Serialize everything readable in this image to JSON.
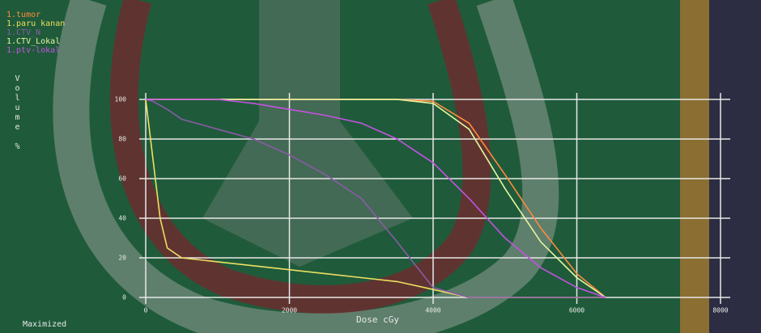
{
  "chart_data": {
    "type": "line",
    "x_label": "Dose cGy",
    "y_label": "Volume %",
    "x": [
      0,
      100,
      200,
      300,
      500,
      1000,
      1500,
      2000,
      2500,
      3000,
      3500,
      4000,
      4500,
      5000,
      5500,
      6000,
      6400
    ],
    "series": [
      {
        "name": "1.tumor",
        "color": "#ff8a3c",
        "values": [
          100,
          100,
          100,
          100,
          100,
          100,
          100,
          100,
          100,
          100,
          100,
          99,
          88,
          62,
          35,
          12,
          0
        ]
      },
      {
        "name": "1.paru kanan",
        "color": "#eedf62",
        "values": [
          100,
          70,
          40,
          25,
          20,
          18,
          16,
          14,
          12,
          10,
          8,
          4,
          0,
          0,
          0,
          0,
          0
        ]
      },
      {
        "name": "1.CTV_N",
        "color": "#8a5aa8",
        "values": [
          100,
          99,
          97,
          95,
          90,
          85,
          80,
          72,
          62,
          50,
          28,
          5,
          0,
          0,
          0,
          0,
          0
        ]
      },
      {
        "name": "1.CTV_Lokal",
        "color": "#e6f6a0",
        "values": [
          100,
          100,
          100,
          100,
          100,
          100,
          100,
          100,
          100,
          100,
          100,
          98,
          85,
          55,
          28,
          10,
          0
        ]
      },
      {
        "name": "1.ptv-lokal",
        "color": "#c452e2",
        "values": [
          100,
          100,
          100,
          100,
          100,
          100,
          98,
          95,
          92,
          88,
          80,
          68,
          50,
          30,
          15,
          5,
          0
        ]
      }
    ],
    "xlim": [
      0,
      8000
    ],
    "ylim": [
      0,
      100
    ],
    "xticks": [
      0,
      2000,
      4000,
      6000,
      8000
    ],
    "yticks": [
      0,
      20,
      40,
      60,
      80,
      100
    ],
    "grid": true
  },
  "status": "Maximized"
}
